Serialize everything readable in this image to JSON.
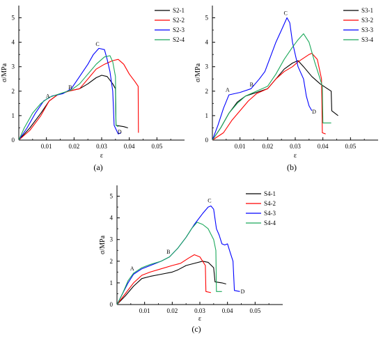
{
  "chart_data": [
    {
      "type": "line",
      "panel_label": "(a)",
      "xlabel": "ε",
      "ylabel": "σ/MPa",
      "xlim": [
        0,
        0.06
      ],
      "ylim": [
        0,
        5.5
      ],
      "x_ticks": [
        "0.01",
        "0.02",
        "0.03",
        "0.04",
        "0.05"
      ],
      "y_ticks": [
        "0",
        "1",
        "2",
        "3",
        "4",
        "5"
      ],
      "legend_position": "top-right",
      "series": [
        {
          "name": "S2-1",
          "color": "#000000",
          "points": [
            [
              0,
              0
            ],
            [
              0.004,
              0.5
            ],
            [
              0.008,
              1.1
            ],
            [
              0.011,
              1.6
            ],
            [
              0.014,
              1.85
            ],
            [
              0.018,
              2.0
            ],
            [
              0.022,
              2.1
            ],
            [
              0.025,
              2.3
            ],
            [
              0.028,
              2.55
            ],
            [
              0.03,
              2.65
            ],
            [
              0.032,
              2.6
            ],
            [
              0.034,
              2.3
            ],
            [
              0.035,
              2.1
            ],
            [
              0.0352,
              0.6
            ],
            [
              0.038,
              0.55
            ],
            [
              0.0395,
              0.5
            ]
          ]
        },
        {
          "name": "S2-2",
          "color": "#ff0000",
          "points": [
            [
              0,
              0
            ],
            [
              0.004,
              0.4
            ],
            [
              0.008,
              1.0
            ],
            [
              0.011,
              1.6
            ],
            [
              0.014,
              1.85
            ],
            [
              0.018,
              2.0
            ],
            [
              0.022,
              2.1
            ],
            [
              0.025,
              2.5
            ],
            [
              0.028,
              2.9
            ],
            [
              0.031,
              3.1
            ],
            [
              0.034,
              3.25
            ],
            [
              0.036,
              3.3
            ],
            [
              0.038,
              3.1
            ],
            [
              0.04,
              2.7
            ],
            [
              0.042,
              2.4
            ],
            [
              0.0432,
              2.2
            ],
            [
              0.0433,
              0.3
            ]
          ]
        },
        {
          "name": "S2-3",
          "color": "#0000ff",
          "points": [
            [
              0,
              0
            ],
            [
              0.003,
              0.5
            ],
            [
              0.006,
              1.1
            ],
            [
              0.009,
              1.6
            ],
            [
              0.012,
              1.8
            ],
            [
              0.016,
              1.9
            ],
            [
              0.019,
              2.1
            ],
            [
              0.022,
              2.6
            ],
            [
              0.025,
              3.1
            ],
            [
              0.027,
              3.5
            ],
            [
              0.029,
              3.75
            ],
            [
              0.031,
              3.7
            ],
            [
              0.032,
              3.3
            ],
            [
              0.033,
              2.8
            ],
            [
              0.034,
              2.0
            ],
            [
              0.0345,
              0.6
            ],
            [
              0.036,
              0.25
            ],
            [
              0.037,
              0.3
            ]
          ]
        },
        {
          "name": "S2-4",
          "color": "#1aa85a",
          "points": [
            [
              0,
              0
            ],
            [
              0.002,
              0.5
            ],
            [
              0.005,
              1.1
            ],
            [
              0.008,
              1.5
            ],
            [
              0.011,
              1.75
            ],
            [
              0.015,
              1.9
            ],
            [
              0.019,
              2.05
            ],
            [
              0.022,
              2.3
            ],
            [
              0.025,
              2.7
            ],
            [
              0.028,
              3.1
            ],
            [
              0.031,
              3.4
            ],
            [
              0.033,
              3.45
            ],
            [
              0.034,
              3.2
            ],
            [
              0.035,
              2.6
            ],
            [
              0.0352,
              0.6
            ],
            [
              0.036,
              0.55
            ]
          ]
        }
      ],
      "annotations": [
        {
          "text": "A",
          "x": 0.0105,
          "y": 1.72
        },
        {
          "text": "B",
          "x": 0.0186,
          "y": 2.08
        },
        {
          "text": "C",
          "x": 0.0285,
          "y": 3.85
        },
        {
          "text": "D",
          "x": 0.0365,
          "y": 0.25
        }
      ]
    },
    {
      "type": "line",
      "panel_label": "(b)",
      "xlabel": "ε",
      "ylabel": "σ/MPa",
      "xlim": [
        0,
        0.06
      ],
      "ylim": [
        0,
        5.5
      ],
      "x_ticks": [
        "0.01",
        "0.02",
        "0.03",
        "0.04",
        "0.05"
      ],
      "y_ticks": [
        "0",
        "1",
        "2",
        "3",
        "4",
        "5"
      ],
      "legend_position": "top-right",
      "series": [
        {
          "name": "S3-1",
          "color": "#000000",
          "points": [
            [
              0,
              0
            ],
            [
              0.003,
              0.5
            ],
            [
              0.006,
              1.1
            ],
            [
              0.009,
              1.55
            ],
            [
              0.012,
              1.8
            ],
            [
              0.016,
              1.95
            ],
            [
              0.02,
              2.1
            ],
            [
              0.023,
              2.5
            ],
            [
              0.026,
              2.9
            ],
            [
              0.029,
              3.15
            ],
            [
              0.031,
              3.25
            ],
            [
              0.033,
              3.0
            ],
            [
              0.036,
              2.6
            ],
            [
              0.039,
              2.3
            ],
            [
              0.041,
              2.15
            ],
            [
              0.043,
              2.0
            ],
            [
              0.0432,
              1.2
            ],
            [
              0.0455,
              1.0
            ]
          ]
        },
        {
          "name": "S3-2",
          "color": "#ff0000",
          "points": [
            [
              0,
              0
            ],
            [
              0.004,
              0.3
            ],
            [
              0.007,
              0.8
            ],
            [
              0.01,
              1.2
            ],
            [
              0.013,
              1.6
            ],
            [
              0.016,
              1.9
            ],
            [
              0.02,
              2.1
            ],
            [
              0.023,
              2.5
            ],
            [
              0.026,
              2.8
            ],
            [
              0.029,
              3.0
            ],
            [
              0.031,
              3.2
            ],
            [
              0.033,
              3.35
            ],
            [
              0.035,
              3.5
            ],
            [
              0.036,
              3.55
            ],
            [
              0.038,
              3.3
            ],
            [
              0.0395,
              2.5
            ],
            [
              0.0398,
              0.3
            ],
            [
              0.041,
              0.25
            ]
          ]
        },
        {
          "name": "S3-3",
          "color": "#0000ff",
          "points": [
            [
              0,
              0
            ],
            [
              0.002,
              0.6
            ],
            [
              0.004,
              1.3
            ],
            [
              0.006,
              1.85
            ],
            [
              0.01,
              1.95
            ],
            [
              0.014,
              2.1
            ],
            [
              0.017,
              2.5
            ],
            [
              0.019,
              2.8
            ],
            [
              0.021,
              3.4
            ],
            [
              0.023,
              4.0
            ],
            [
              0.025,
              4.5
            ],
            [
              0.027,
              5.0
            ],
            [
              0.028,
              4.8
            ],
            [
              0.029,
              4.0
            ],
            [
              0.031,
              3.0
            ],
            [
              0.033,
              2.5
            ],
            [
              0.034,
              1.8
            ],
            [
              0.035,
              1.4
            ],
            [
              0.036,
              1.2
            ]
          ]
        },
        {
          "name": "S3-4",
          "color": "#1aa85a",
          "points": [
            [
              0,
              0
            ],
            [
              0.003,
              0.5
            ],
            [
              0.006,
              1.1
            ],
            [
              0.009,
              1.5
            ],
            [
              0.012,
              1.8
            ],
            [
              0.016,
              2.0
            ],
            [
              0.02,
              2.2
            ],
            [
              0.023,
              2.7
            ],
            [
              0.026,
              3.3
            ],
            [
              0.029,
              3.8
            ],
            [
              0.031,
              4.1
            ],
            [
              0.033,
              4.35
            ],
            [
              0.035,
              4.0
            ],
            [
              0.037,
              3.2
            ],
            [
              0.039,
              2.5
            ],
            [
              0.0398,
              2.2
            ],
            [
              0.04,
              0.7
            ],
            [
              0.043,
              0.7
            ]
          ]
        }
      ],
      "annotations": [
        {
          "text": "A",
          "x": 0.0055,
          "y": 1.98
        },
        {
          "text": "B",
          "x": 0.0142,
          "y": 2.2
        },
        {
          "text": "C",
          "x": 0.0265,
          "y": 5.12
        },
        {
          "text": "D",
          "x": 0.0368,
          "y": 1.08
        }
      ]
    },
    {
      "type": "line",
      "panel_label": "(c)",
      "xlabel": "ε",
      "ylabel": "σ/MPa",
      "xlim": [
        0,
        0.06
      ],
      "ylim": [
        0,
        5.5
      ],
      "x_ticks": [
        "0.01",
        "0.02",
        "0.03",
        "0.04",
        "0.05"
      ],
      "y_ticks": [
        "0",
        "1",
        "2",
        "3",
        "4",
        "5"
      ],
      "legend_position": "top-left",
      "series": [
        {
          "name": "S4-1",
          "color": "#000000",
          "points": [
            [
              0,
              0
            ],
            [
              0.003,
              0.4
            ],
            [
              0.006,
              0.85
            ],
            [
              0.009,
              1.2
            ],
            [
              0.012,
              1.3
            ],
            [
              0.016,
              1.4
            ],
            [
              0.02,
              1.5
            ],
            [
              0.022,
              1.6
            ],
            [
              0.025,
              1.8
            ],
            [
              0.028,
              1.9
            ],
            [
              0.031,
              2.0
            ],
            [
              0.033,
              1.95
            ],
            [
              0.035,
              1.7
            ],
            [
              0.0355,
              1.05
            ],
            [
              0.038,
              1.0
            ],
            [
              0.0395,
              0.95
            ]
          ]
        },
        {
          "name": "S4-2",
          "color": "#ff0000",
          "points": [
            [
              0,
              0
            ],
            [
              0.003,
              0.5
            ],
            [
              0.006,
              1.0
            ],
            [
              0.009,
              1.35
            ],
            [
              0.012,
              1.5
            ],
            [
              0.016,
              1.65
            ],
            [
              0.02,
              1.8
            ],
            [
              0.023,
              1.9
            ],
            [
              0.026,
              2.15
            ],
            [
              0.028,
              2.3
            ],
            [
              0.03,
              2.2
            ],
            [
              0.031,
              2.0
            ],
            [
              0.032,
              1.8
            ],
            [
              0.0322,
              0.6
            ],
            [
              0.034,
              0.55
            ]
          ]
        },
        {
          "name": "S4-3",
          "color": "#0000ff",
          "points": [
            [
              0,
              0
            ],
            [
              0.002,
              0.5
            ],
            [
              0.004,
              1.0
            ],
            [
              0.006,
              1.4
            ],
            [
              0.009,
              1.65
            ],
            [
              0.013,
              1.85
            ],
            [
              0.016,
              2.0
            ],
            [
              0.019,
              2.2
            ],
            [
              0.022,
              2.6
            ],
            [
              0.025,
              3.1
            ],
            [
              0.028,
              3.7
            ],
            [
              0.031,
              4.2
            ],
            [
              0.033,
              4.5
            ],
            [
              0.034,
              4.55
            ],
            [
              0.035,
              4.4
            ],
            [
              0.036,
              3.5
            ],
            [
              0.037,
              3.2
            ],
            [
              0.038,
              2.8
            ],
            [
              0.039,
              2.75
            ],
            [
              0.04,
              2.8
            ],
            [
              0.041,
              2.4
            ],
            [
              0.042,
              2.0
            ],
            [
              0.0425,
              0.65
            ],
            [
              0.0445,
              0.6
            ]
          ]
        },
        {
          "name": "S4-4",
          "color": "#1aa85a",
          "points": [
            [
              0,
              0
            ],
            [
              0.002,
              0.5
            ],
            [
              0.004,
              1.1
            ],
            [
              0.006,
              1.45
            ],
            [
              0.009,
              1.7
            ],
            [
              0.012,
              1.85
            ],
            [
              0.016,
              2.0
            ],
            [
              0.019,
              2.2
            ],
            [
              0.022,
              2.6
            ],
            [
              0.025,
              3.1
            ],
            [
              0.027,
              3.5
            ],
            [
              0.029,
              3.8
            ],
            [
              0.031,
              3.7
            ],
            [
              0.033,
              3.5
            ],
            [
              0.035,
              3.0
            ],
            [
              0.0358,
              2.5
            ],
            [
              0.036,
              0.6
            ],
            [
              0.038,
              0.6
            ]
          ]
        }
      ],
      "annotations": [
        {
          "text": "A",
          "x": 0.0055,
          "y": 1.58
        },
        {
          "text": "B",
          "x": 0.0186,
          "y": 2.34
        },
        {
          "text": "C",
          "x": 0.0335,
          "y": 4.72
        },
        {
          "text": "D",
          "x": 0.0455,
          "y": 0.52
        }
      ]
    }
  ]
}
